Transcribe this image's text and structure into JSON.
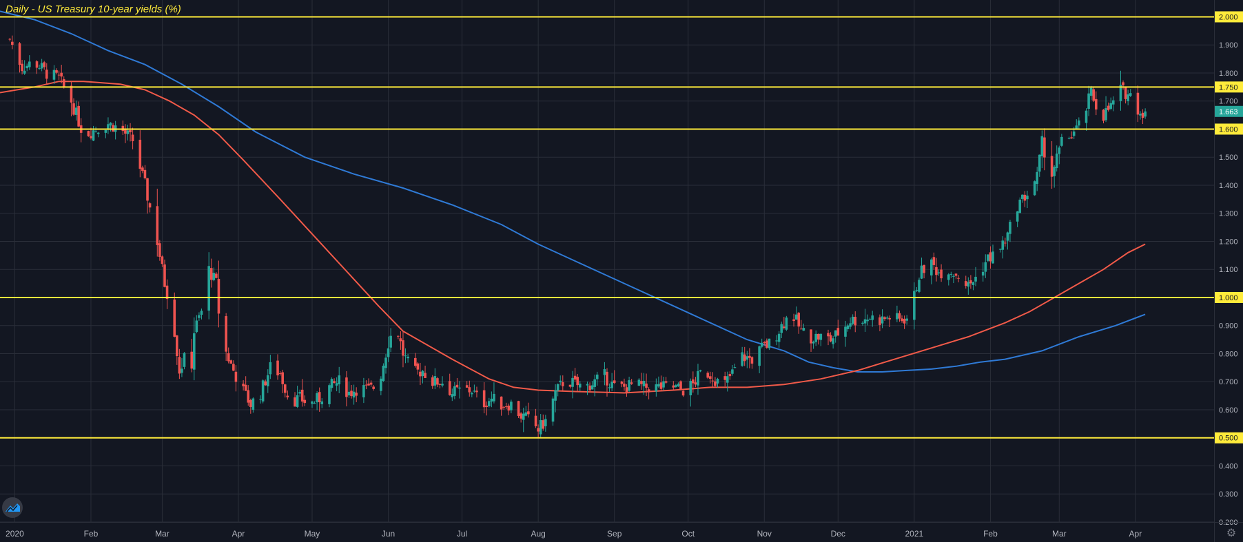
{
  "chart_data": {
    "type": "candlestick",
    "title": "Daily - US Treasury 10-year yields (%)",
    "ylim": [
      0.2,
      2.06
    ],
    "y_ticks": [
      "0.200",
      "0.300",
      "0.400",
      "0.500",
      "0.600",
      "0.700",
      "0.800",
      "0.900",
      "1.000",
      "1.100",
      "1.200",
      "1.300",
      "1.400",
      "1.500",
      "1.600",
      "1.700",
      "1.750",
      "1.800",
      "1.900",
      "2.000"
    ],
    "x_ticks": [
      {
        "label": "2020",
        "day": 2
      },
      {
        "label": "Feb",
        "day": 33
      },
      {
        "label": "Mar",
        "day": 62
      },
      {
        "label": "Apr",
        "day": 93
      },
      {
        "label": "May",
        "day": 123
      },
      {
        "label": "Jun",
        "day": 154
      },
      {
        "label": "Jul",
        "day": 184
      },
      {
        "label": "Aug",
        "day": 215
      },
      {
        "label": "Sep",
        "day": 246
      },
      {
        "label": "Oct",
        "day": 276
      },
      {
        "label": "Nov",
        "day": 307
      },
      {
        "label": "Dec",
        "day": 337
      },
      {
        "label": "2021",
        "day": 368
      },
      {
        "label": "Feb",
        "day": 399
      },
      {
        "label": "Mar",
        "day": 427
      },
      {
        "label": "Apr",
        "day": 458
      }
    ],
    "x_range_days": [
      -4,
      490
    ],
    "horizontal_levels": [
      {
        "value": 2.0,
        "label": "2.000"
      },
      {
        "value": 1.75,
        "label": "1.750"
      },
      {
        "value": 1.6,
        "label": "1.600"
      },
      {
        "value": 1.0,
        "label": "1.000"
      },
      {
        "value": 0.5,
        "label": "0.500"
      }
    ],
    "last_price": {
      "value": 1.663,
      "label": "1.663"
    },
    "price_path": [
      [
        0,
        1.92
      ],
      [
        5,
        1.82
      ],
      [
        10,
        1.84
      ],
      [
        15,
        1.8
      ],
      [
        20,
        1.78
      ],
      [
        25,
        1.7
      ],
      [
        30,
        1.58
      ],
      [
        35,
        1.6
      ],
      [
        40,
        1.62
      ],
      [
        45,
        1.6
      ],
      [
        50,
        1.56
      ],
      [
        55,
        1.4
      ],
      [
        60,
        1.2
      ],
      [
        63,
        1.05
      ],
      [
        66,
        0.95
      ],
      [
        69,
        0.74
      ],
      [
        71,
        0.78
      ],
      [
        73,
        0.65
      ],
      [
        75,
        0.88
      ],
      [
        78,
        0.95
      ],
      [
        81,
        1.1
      ],
      [
        84,
        1.05
      ],
      [
        86,
        0.85
      ],
      [
        90,
        0.76
      ],
      [
        94,
        0.68
      ],
      [
        98,
        0.62
      ],
      [
        102,
        0.66
      ],
      [
        106,
        0.75
      ],
      [
        110,
        0.73
      ],
      [
        114,
        0.63
      ],
      [
        118,
        0.64
      ],
      [
        122,
        0.62
      ],
      [
        126,
        0.64
      ],
      [
        130,
        0.68
      ],
      [
        134,
        0.7
      ],
      [
        138,
        0.66
      ],
      [
        142,
        0.68
      ],
      [
        146,
        0.67
      ],
      [
        150,
        0.69
      ],
      [
        154,
        0.84
      ],
      [
        157,
        0.91
      ],
      [
        160,
        0.8
      ],
      [
        164,
        0.73
      ],
      [
        168,
        0.74
      ],
      [
        172,
        0.7
      ],
      [
        176,
        0.7
      ],
      [
        180,
        0.66
      ],
      [
        184,
        0.67
      ],
      [
        188,
        0.67
      ],
      [
        192,
        0.62
      ],
      [
        196,
        0.64
      ],
      [
        200,
        0.62
      ],
      [
        204,
        0.62
      ],
      [
        208,
        0.58
      ],
      [
        212,
        0.56
      ],
      [
        215,
        0.53
      ],
      [
        218,
        0.56
      ],
      [
        222,
        0.66
      ],
      [
        226,
        0.71
      ],
      [
        230,
        0.69
      ],
      [
        234,
        0.68
      ],
      [
        238,
        0.7
      ],
      [
        242,
        0.72
      ],
      [
        246,
        0.68
      ],
      [
        250,
        0.68
      ],
      [
        254,
        0.69
      ],
      [
        258,
        0.68
      ],
      [
        262,
        0.68
      ],
      [
        266,
        0.68
      ],
      [
        270,
        0.68
      ],
      [
        274,
        0.67
      ],
      [
        278,
        0.69
      ],
      [
        282,
        0.74
      ],
      [
        286,
        0.72
      ],
      [
        290,
        0.68
      ],
      [
        294,
        0.73
      ],
      [
        298,
        0.79
      ],
      [
        302,
        0.78
      ],
      [
        306,
        0.82
      ],
      [
        310,
        0.84
      ],
      [
        314,
        0.9
      ],
      [
        318,
        0.95
      ],
      [
        322,
        0.88
      ],
      [
        326,
        0.86
      ],
      [
        330,
        0.86
      ],
      [
        334,
        0.85
      ],
      [
        338,
        0.88
      ],
      [
        342,
        0.92
      ],
      [
        346,
        0.92
      ],
      [
        350,
        0.93
      ],
      [
        354,
        0.92
      ],
      [
        358,
        0.93
      ],
      [
        362,
        0.92
      ],
      [
        366,
        0.93
      ],
      [
        370,
        1.08
      ],
      [
        374,
        1.13
      ],
      [
        378,
        1.09
      ],
      [
        382,
        1.1
      ],
      [
        386,
        1.08
      ],
      [
        390,
        1.04
      ],
      [
        394,
        1.08
      ],
      [
        398,
        1.14
      ],
      [
        402,
        1.16
      ],
      [
        406,
        1.22
      ],
      [
        410,
        1.33
      ],
      [
        414,
        1.37
      ],
      [
        418,
        1.43
      ],
      [
        420,
        1.55
      ],
      [
        424,
        1.44
      ],
      [
        428,
        1.55
      ],
      [
        432,
        1.58
      ],
      [
        436,
        1.62
      ],
      [
        440,
        1.73
      ],
      [
        444,
        1.64
      ],
      [
        448,
        1.68
      ],
      [
        452,
        1.74
      ],
      [
        456,
        1.72
      ],
      [
        460,
        1.66
      ],
      [
        462,
        1.663
      ]
    ],
    "ma_fast_name": "",
    "ma_fast": [
      [
        -4,
        1.73
      ],
      [
        10,
        1.75
      ],
      [
        20,
        1.77
      ],
      [
        30,
        1.77
      ],
      [
        45,
        1.76
      ],
      [
        55,
        1.74
      ],
      [
        65,
        1.7
      ],
      [
        75,
        1.65
      ],
      [
        85,
        1.58
      ],
      [
        95,
        1.49
      ],
      [
        110,
        1.35
      ],
      [
        130,
        1.16
      ],
      [
        150,
        0.97
      ],
      [
        160,
        0.88
      ],
      [
        180,
        0.78
      ],
      [
        195,
        0.71
      ],
      [
        205,
        0.68
      ],
      [
        215,
        0.67
      ],
      [
        230,
        0.665
      ],
      [
        250,
        0.66
      ],
      [
        270,
        0.67
      ],
      [
        285,
        0.68
      ],
      [
        300,
        0.68
      ],
      [
        315,
        0.69
      ],
      [
        330,
        0.71
      ],
      [
        345,
        0.74
      ],
      [
        360,
        0.78
      ],
      [
        375,
        0.82
      ],
      [
        390,
        0.86
      ],
      [
        405,
        0.91
      ],
      [
        415,
        0.95
      ],
      [
        425,
        1.0
      ],
      [
        435,
        1.05
      ],
      [
        445,
        1.1
      ],
      [
        455,
        1.16
      ],
      [
        462,
        1.19
      ]
    ],
    "ma_slow_name": "",
    "ma_slow": [
      [
        -4,
        2.02
      ],
      [
        10,
        1.99
      ],
      [
        25,
        1.94
      ],
      [
        40,
        1.88
      ],
      [
        55,
        1.83
      ],
      [
        70,
        1.76
      ],
      [
        85,
        1.68
      ],
      [
        100,
        1.59
      ],
      [
        120,
        1.5
      ],
      [
        140,
        1.44
      ],
      [
        160,
        1.39
      ],
      [
        180,
        1.33
      ],
      [
        200,
        1.26
      ],
      [
        215,
        1.19
      ],
      [
        230,
        1.13
      ],
      [
        250,
        1.05
      ],
      [
        270,
        0.97
      ],
      [
        285,
        0.91
      ],
      [
        300,
        0.85
      ],
      [
        315,
        0.81
      ],
      [
        325,
        0.77
      ],
      [
        335,
        0.75
      ],
      [
        345,
        0.735
      ],
      [
        355,
        0.735
      ],
      [
        365,
        0.74
      ],
      [
        375,
        0.745
      ],
      [
        385,
        0.755
      ],
      [
        395,
        0.77
      ],
      [
        405,
        0.78
      ],
      [
        420,
        0.81
      ],
      [
        435,
        0.86
      ],
      [
        450,
        0.9
      ],
      [
        462,
        0.94
      ]
    ],
    "colors": {
      "background": "#131722",
      "grid": "#2a2e39",
      "up": "#26a69a",
      "down": "#ef5350",
      "level": "#ffeb3b",
      "ma_fast": "#f15a49",
      "ma_slow": "#2f7ad6",
      "axis_text": "#b2b5be",
      "last_price_bg": "#26a69a"
    }
  },
  "icons": {
    "logo": "tradingview-logo-icon",
    "settings": "gear-icon",
    "settings_glyph": "⚙"
  }
}
